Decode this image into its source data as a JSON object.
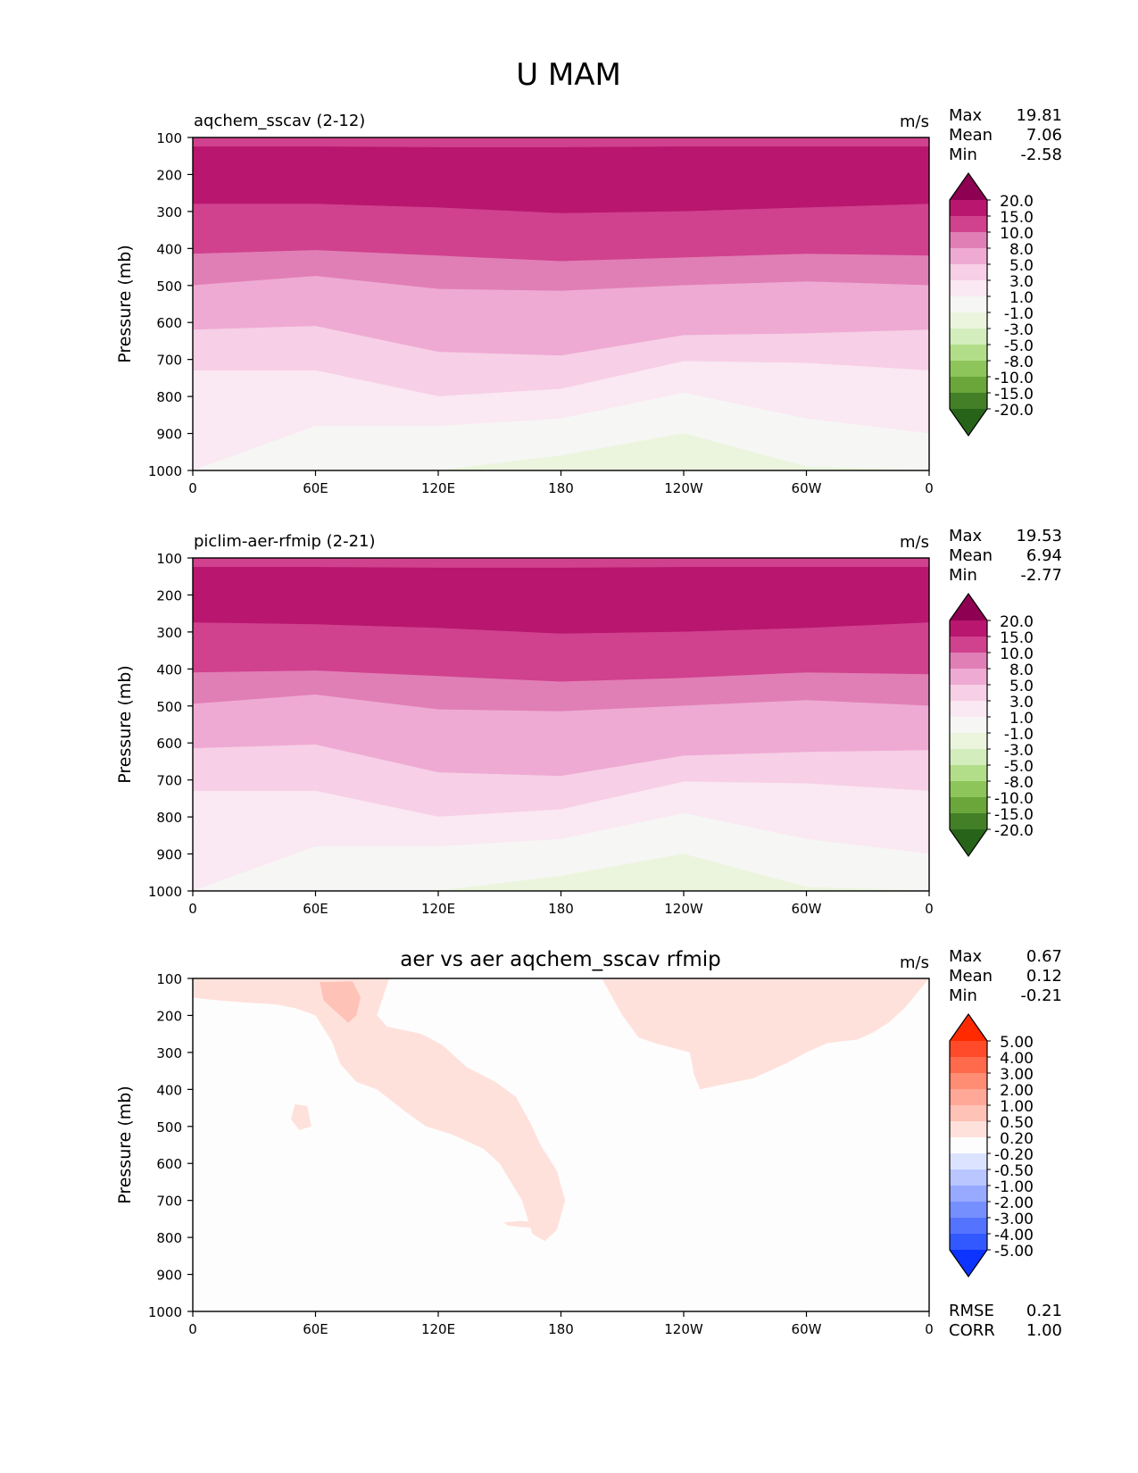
{
  "figure": {
    "title": "U MAM"
  },
  "chart_data": [
    {
      "type": "contour",
      "title": "aqchem_sscav (2-12)",
      "units": "m/s",
      "ylabel": "Pressure (mb)",
      "x_ticks": [
        "0",
        "60E",
        "120E",
        "180",
        "120W",
        "60W",
        "0"
      ],
      "y_ticks": [
        "100",
        "200",
        "300",
        "400",
        "500",
        "600",
        "700",
        "800",
        "900",
        "1000"
      ],
      "ylim": [
        1000,
        100
      ],
      "stats": [
        {
          "label": "Max",
          "value": "19.81"
        },
        {
          "label": "Mean",
          "value": "7.06"
        },
        {
          "label": "Min",
          "value": "-2.58"
        }
      ],
      "colorbar": {
        "levels": [
          "20.0",
          "15.0",
          "10.0",
          "8.0",
          "5.0",
          "3.0",
          "1.0",
          "-1.0",
          "-3.0",
          "-5.0",
          "-8.0",
          "-10.0",
          "-15.0",
          "-20.0"
        ],
        "colors": [
          "#8e0152",
          "#b8166f",
          "#d0418e",
          "#e07fb5",
          "#eeaad3",
          "#f7cfe6",
          "#fae8f2",
          "#f6f6f4",
          "#ebf5de",
          "#d4edbd",
          "#b3de89",
          "#8dc55b",
          "#6aa63a",
          "#437f26",
          "#276419"
        ]
      },
      "bands": [
        {
          "color": "#d0418e",
          "top": [
            100,
            100,
            100,
            100,
            100,
            100,
            100
          ],
          "bottom": [
            125,
            125,
            127,
            127,
            125,
            125,
            125
          ]
        },
        {
          "color": "#b8166f",
          "top": [
            125,
            125,
            127,
            127,
            125,
            125,
            125
          ],
          "bottom": [
            280,
            280,
            290,
            305,
            300,
            290,
            280
          ]
        },
        {
          "color": "#d0418e",
          "top": [
            280,
            280,
            290,
            305,
            300,
            290,
            280
          ],
          "bottom": [
            415,
            405,
            420,
            435,
            425,
            415,
            420
          ]
        },
        {
          "color": "#e07fb5",
          "top": [
            415,
            405,
            420,
            435,
            425,
            415,
            420
          ],
          "bottom": [
            500,
            475,
            510,
            515,
            500,
            490,
            500
          ]
        },
        {
          "color": "#eeaad3",
          "top": [
            500,
            475,
            510,
            515,
            500,
            490,
            500
          ],
          "bottom": [
            620,
            610,
            680,
            690,
            635,
            630,
            620
          ]
        },
        {
          "color": "#f7cfe6",
          "top": [
            620,
            610,
            680,
            690,
            635,
            630,
            620
          ],
          "bottom": [
            730,
            730,
            800,
            780,
            705,
            710,
            730
          ]
        },
        {
          "color": "#fae8f2",
          "top": [
            730,
            730,
            800,
            780,
            705,
            710,
            730
          ],
          "bottom": [
            1000,
            880,
            880,
            860,
            790,
            860,
            900
          ]
        },
        {
          "color": "#f6f6f4",
          "top": [
            1000,
            880,
            880,
            860,
            790,
            860,
            900
          ],
          "bottom": [
            1000,
            1000,
            1000,
            1000,
            1000,
            1000,
            1000
          ]
        },
        {
          "color": "#ebf5de",
          "top": [
            1000,
            1000,
            1000,
            960,
            900,
            990,
            1000
          ],
          "bottom": [
            1000,
            1000,
            1000,
            1000,
            1000,
            1000,
            1000
          ]
        }
      ]
    },
    {
      "type": "contour",
      "title": "piclim-aer-rfmip (2-21)",
      "units": "m/s",
      "ylabel": "Pressure (mb)",
      "x_ticks": [
        "0",
        "60E",
        "120E",
        "180",
        "120W",
        "60W",
        "0"
      ],
      "y_ticks": [
        "100",
        "200",
        "300",
        "400",
        "500",
        "600",
        "700",
        "800",
        "900",
        "1000"
      ],
      "ylim": [
        1000,
        100
      ],
      "stats": [
        {
          "label": "Max",
          "value": "19.53"
        },
        {
          "label": "Mean",
          "value": "6.94"
        },
        {
          "label": "Min",
          "value": "-2.77"
        }
      ],
      "colorbar": {
        "levels": [
          "20.0",
          "15.0",
          "10.0",
          "8.0",
          "5.0",
          "3.0",
          "1.0",
          "-1.0",
          "-3.0",
          "-5.0",
          "-8.0",
          "-10.0",
          "-15.0",
          "-20.0"
        ],
        "colors": [
          "#8e0152",
          "#b8166f",
          "#d0418e",
          "#e07fb5",
          "#eeaad3",
          "#f7cfe6",
          "#fae8f2",
          "#f6f6f4",
          "#ebf5de",
          "#d4edbd",
          "#b3de89",
          "#8dc55b",
          "#6aa63a",
          "#437f26",
          "#276419"
        ]
      },
      "bands": [
        {
          "color": "#d0418e",
          "top": [
            100,
            100,
            100,
            100,
            100,
            100,
            100
          ],
          "bottom": [
            125,
            125,
            127,
            127,
            125,
            125,
            125
          ]
        },
        {
          "color": "#b8166f",
          "top": [
            125,
            125,
            127,
            127,
            125,
            125,
            125
          ],
          "bottom": [
            275,
            280,
            290,
            305,
            300,
            290,
            275
          ]
        },
        {
          "color": "#d0418e",
          "top": [
            275,
            280,
            290,
            305,
            300,
            290,
            275
          ],
          "bottom": [
            410,
            405,
            420,
            435,
            425,
            410,
            415
          ]
        },
        {
          "color": "#e07fb5",
          "top": [
            410,
            405,
            420,
            435,
            425,
            410,
            415
          ],
          "bottom": [
            495,
            470,
            510,
            515,
            500,
            485,
            500
          ]
        },
        {
          "color": "#eeaad3",
          "top": [
            495,
            470,
            510,
            515,
            500,
            485,
            500
          ],
          "bottom": [
            615,
            605,
            680,
            690,
            635,
            625,
            620
          ]
        },
        {
          "color": "#f7cfe6",
          "top": [
            615,
            605,
            680,
            690,
            635,
            625,
            620
          ],
          "bottom": [
            730,
            730,
            800,
            780,
            705,
            710,
            730
          ]
        },
        {
          "color": "#fae8f2",
          "top": [
            730,
            730,
            800,
            780,
            705,
            710,
            730
          ],
          "bottom": [
            1000,
            880,
            880,
            860,
            790,
            860,
            900
          ]
        },
        {
          "color": "#f6f6f4",
          "top": [
            1000,
            880,
            880,
            860,
            790,
            860,
            900
          ],
          "bottom": [
            1000,
            1000,
            1000,
            1000,
            1000,
            1000,
            1000
          ]
        },
        {
          "color": "#ebf5de",
          "top": [
            1000,
            1000,
            1000,
            960,
            900,
            990,
            1000
          ],
          "bottom": [
            1000,
            1000,
            1000,
            1000,
            1000,
            1000,
            1000
          ]
        }
      ]
    },
    {
      "type": "contour",
      "title": "aer vs aer aqchem_sscav rfmip",
      "units": "m/s",
      "ylabel": "Pressure (mb)",
      "x_ticks": [
        "0",
        "60E",
        "120E",
        "180",
        "120W",
        "60W",
        "0"
      ],
      "y_ticks": [
        "100",
        "200",
        "300",
        "400",
        "500",
        "600",
        "700",
        "800",
        "900",
        "1000"
      ],
      "ylim": [
        1000,
        100
      ],
      "stats": [
        {
          "label": "Max",
          "value": "0.67"
        },
        {
          "label": "Mean",
          "value": "0.12"
        },
        {
          "label": "Min",
          "value": "-0.21"
        }
      ],
      "extra_stats": [
        {
          "label": "RMSE",
          "value": "0.21"
        },
        {
          "label": "CORR",
          "value": "1.00"
        }
      ],
      "colorbar": {
        "levels": [
          "5.00",
          "4.00",
          "3.00",
          "2.00",
          "1.00",
          "0.50",
          "0.20",
          "-0.20",
          "-0.50",
          "-1.00",
          "-2.00",
          "-3.00",
          "-4.00",
          "-5.00"
        ],
        "colors": [
          "#ff2a00",
          "#ff4b29",
          "#ff6a4d",
          "#ff8d73",
          "#ffa898",
          "#ffc2b6",
          "#ffe1dc",
          "#fdfdfd",
          "#dce3ff",
          "#b9c6ff",
          "#97aaff",
          "#768fff",
          "#5473ff",
          "#3258ff",
          "#0d33ff"
        ]
      },
      "background": "#fdfdfd",
      "regions": [
        {
          "color": "#ffe1dc",
          "points": [
            [
              0,
              100
            ],
            [
              96,
              100
            ],
            [
              90,
              200
            ],
            [
              95,
              230
            ],
            [
              112,
              250
            ],
            [
              122,
              280
            ],
            [
              134,
              340
            ],
            [
              148,
              380
            ],
            [
              158,
              420
            ],
            [
              165,
              490
            ],
            [
              170,
              550
            ],
            [
              178,
              620
            ],
            [
              182,
              700
            ],
            [
              178,
              780
            ],
            [
              172,
              810
            ],
            [
              166,
              790
            ],
            [
              161,
              700
            ],
            [
              150,
              600
            ],
            [
              142,
              560
            ],
            [
              126,
              520
            ],
            [
              114,
              500
            ],
            [
              104,
              460
            ],
            [
              90,
              400
            ],
            [
              80,
              380
            ],
            [
              72,
              330
            ],
            [
              68,
              270
            ],
            [
              60,
              200
            ],
            [
              50,
              180
            ],
            [
              40,
              170
            ],
            [
              25,
              165
            ],
            [
              14,
              160
            ],
            [
              5,
              155
            ],
            [
              0,
              152
            ]
          ]
        },
        {
          "color": "#ffc2b6",
          "points": [
            [
              62,
              110
            ],
            [
              78,
              108
            ],
            [
              82,
              150
            ],
            [
              80,
              200
            ],
            [
              76,
              220
            ],
            [
              70,
              190
            ],
            [
              64,
              160
            ]
          ]
        },
        {
          "color": "#ffe1dc",
          "points": [
            [
              200,
              100
            ],
            [
              360,
              100
            ],
            [
              354,
              140
            ],
            [
              348,
              180
            ],
            [
              340,
              220
            ],
            [
              333,
              245
            ],
            [
              325,
              265
            ],
            [
              310,
              275
            ],
            [
              300,
              300
            ],
            [
              290,
              330
            ],
            [
              274,
              370
            ],
            [
              256,
              390
            ],
            [
              248,
              400
            ],
            [
              245,
              360
            ],
            [
              243,
              300
            ],
            [
              226,
              275
            ],
            [
              218,
              260
            ],
            [
              210,
              200
            ],
            [
              205,
              150
            ]
          ]
        },
        {
          "color": "#ffe1dc",
          "points": [
            [
              152,
              760
            ],
            [
              160,
              755
            ],
            [
              170,
              760
            ],
            [
              170,
              775
            ],
            [
              160,
              772
            ],
            [
              154,
              768
            ]
          ]
        },
        {
          "color": "#ffe1dc",
          "points": [
            [
              50,
              440
            ],
            [
              56,
              445
            ],
            [
              58,
              500
            ],
            [
              52,
              510
            ],
            [
              48,
              480
            ]
          ]
        }
      ]
    }
  ]
}
